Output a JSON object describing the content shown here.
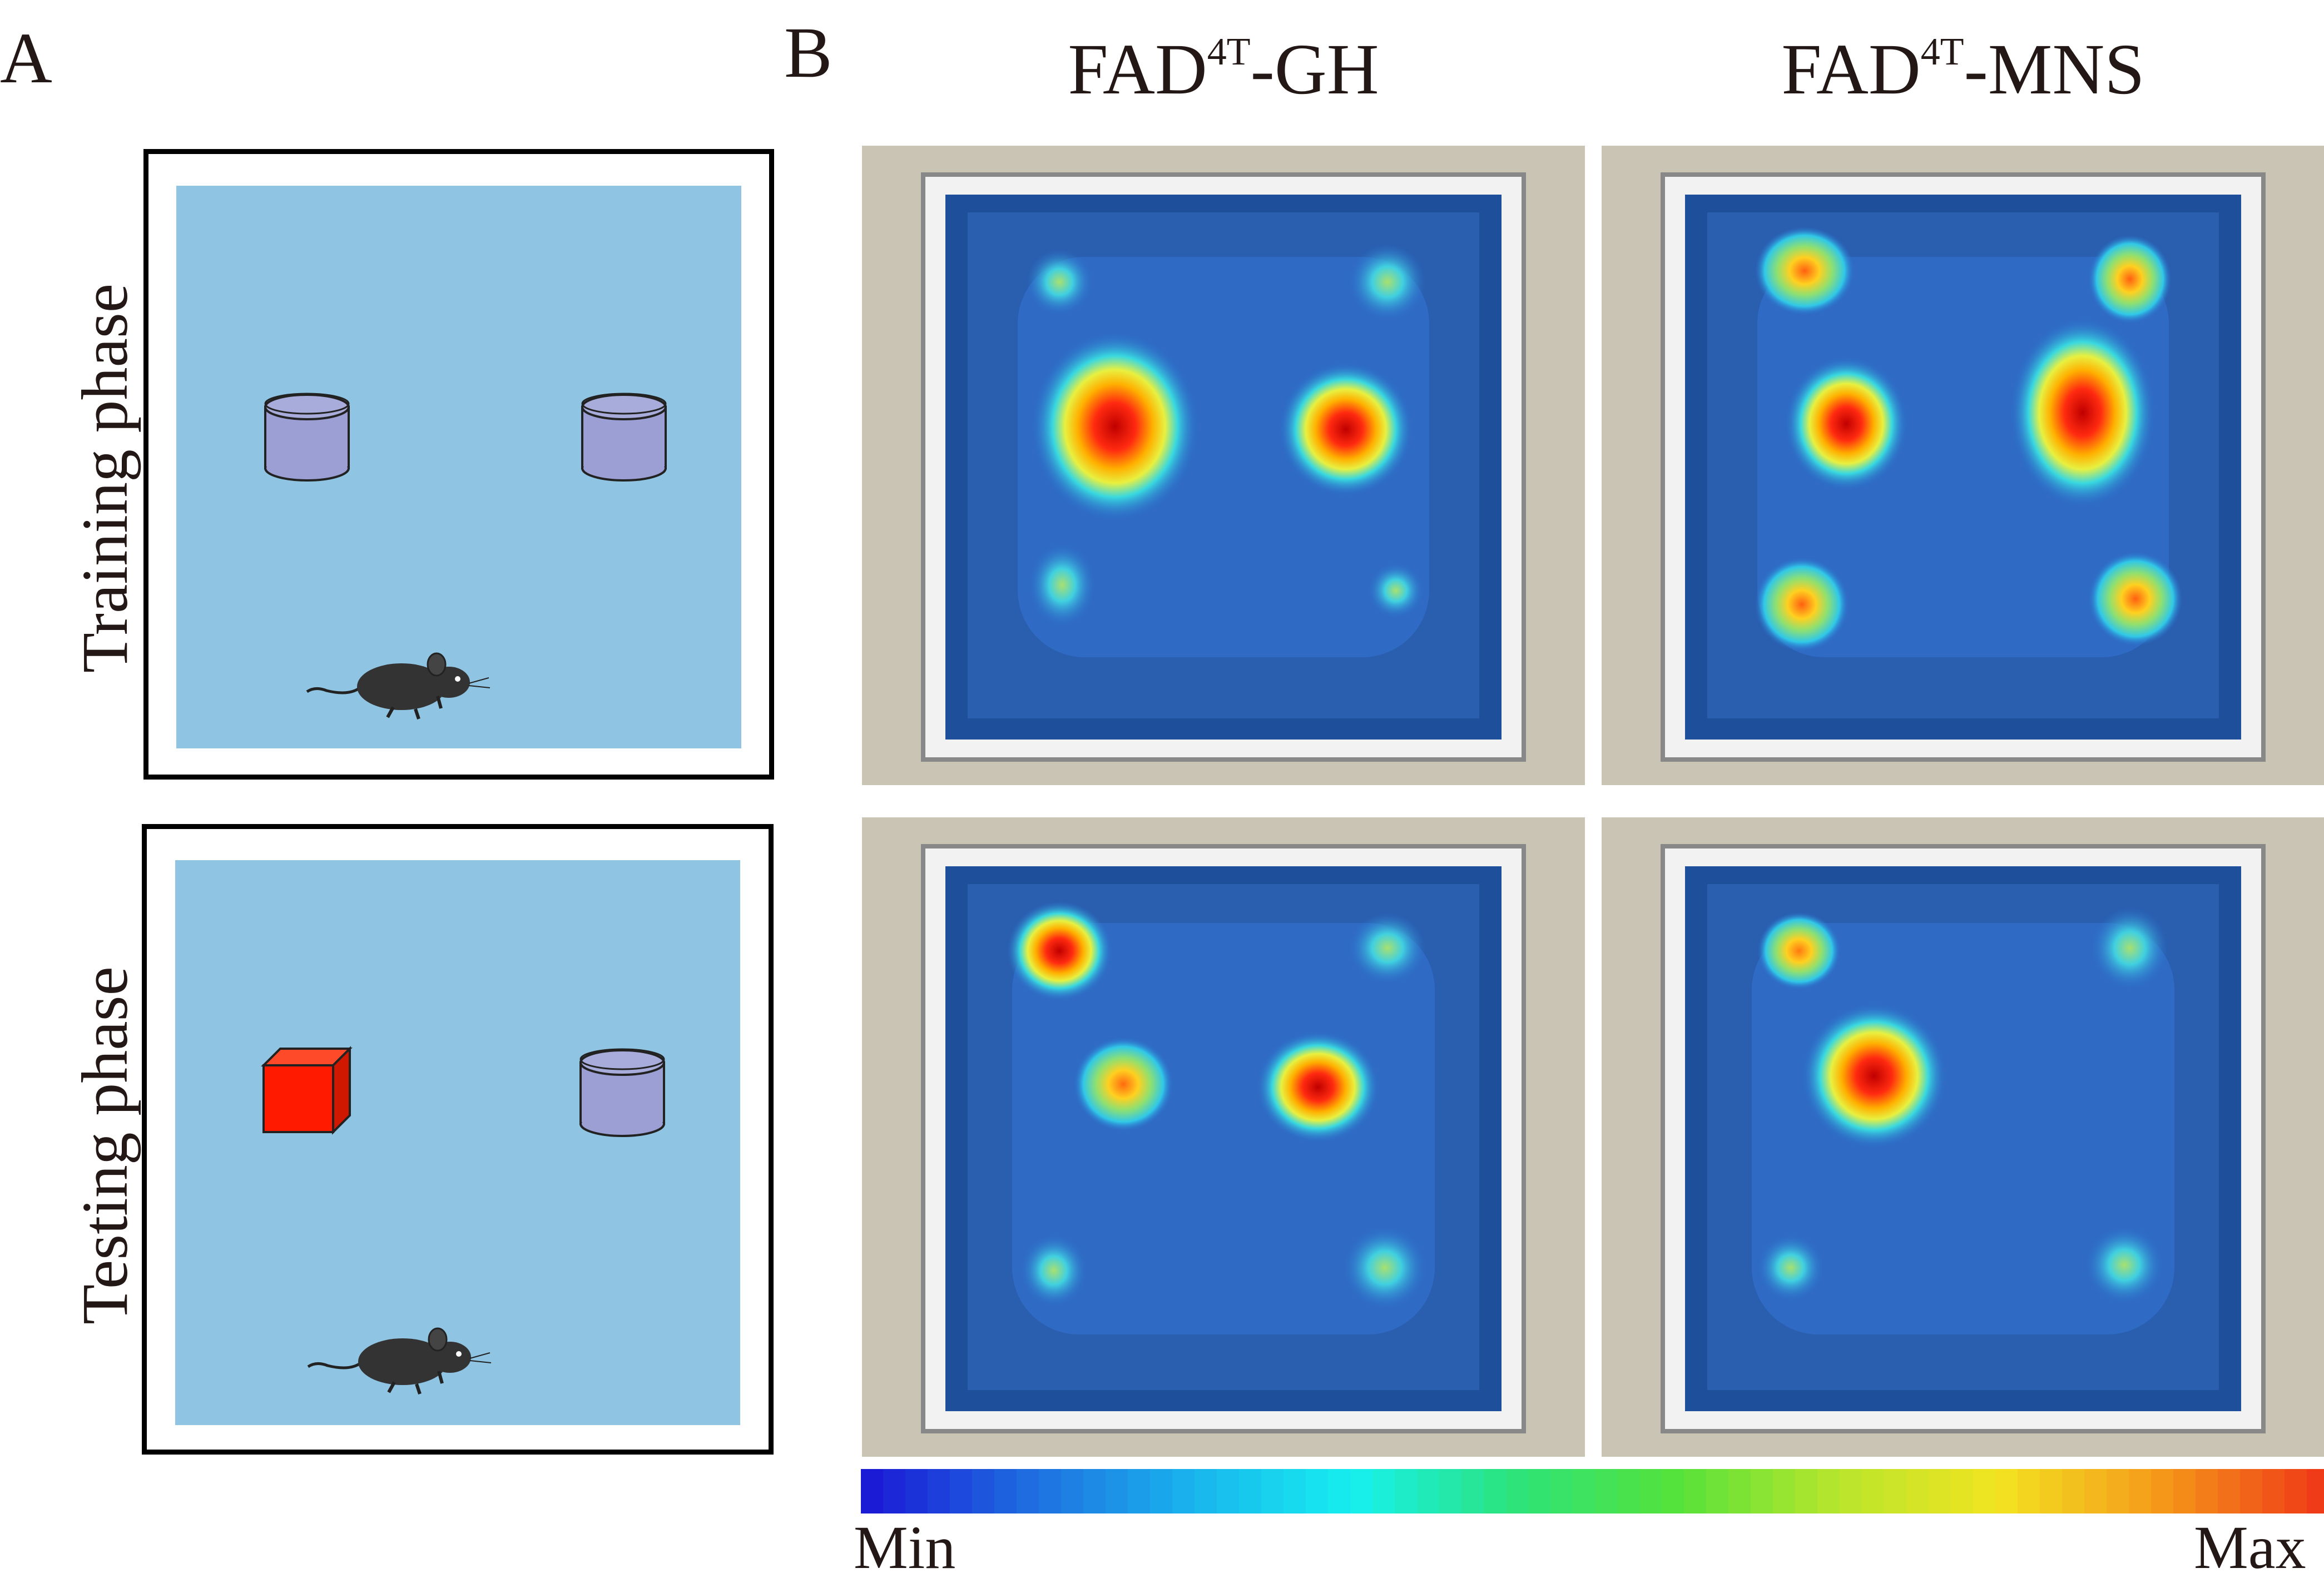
{
  "panels": {
    "a_letter": "A",
    "b_letter": "B"
  },
  "columns": {
    "gh": {
      "prefix": "FAD",
      "sup": "4T",
      "suffix": "-GH"
    },
    "mns": {
      "prefix": "FAD",
      "sup": "4T",
      "suffix": "-MNS"
    }
  },
  "rows": {
    "training": "Training phase",
    "testing": "Testing phase"
  },
  "colorbar": {
    "min": "Min",
    "max": "Max",
    "colors": [
      "#1b1bd6",
      "#1f6fe0",
      "#19b4ee",
      "#17f0ef",
      "#2de37a",
      "#55e23b",
      "#b7e52c",
      "#f2e421",
      "#f59b1a",
      "#ef3b17"
    ]
  },
  "colors": {
    "arena": "#8fc4e3",
    "familiar_object": "#9b9fd3",
    "novel_object": "#ff1a00",
    "mouse": "#333333"
  }
}
